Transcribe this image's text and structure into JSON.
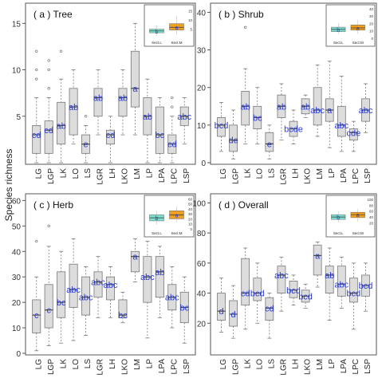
{
  "ylabel": "Species richness",
  "chart_data": [
    {
      "type": "box",
      "panel_label": "( a ) Tree",
      "categories": [
        "LG",
        "LGP",
        "LK",
        "LO",
        "LS",
        "LGR",
        "LH",
        "LKO",
        "LM",
        "LP",
        "LPA",
        "LPC",
        "LSP"
      ],
      "ylim": [
        0,
        17
      ],
      "yticks": [
        5,
        10,
        15
      ],
      "boxes": [
        {
          "min": 0,
          "q1": 1,
          "median": 3,
          "q3": 4,
          "max": 7,
          "outliers": [
            9,
            10,
            12
          ],
          "letter": "cd"
        },
        {
          "min": 0,
          "q1": 1,
          "median": 3.5,
          "q3": 4.5,
          "max": 7,
          "outliers": [
            8,
            10,
            11
          ],
          "letter": "cd"
        },
        {
          "min": 0,
          "q1": 2,
          "median": 4,
          "q3": 6.5,
          "max": 9,
          "outliers": [
            12
          ],
          "letter": "ab"
        },
        {
          "min": 2,
          "q1": 3,
          "median": 6,
          "q3": 8,
          "max": 10,
          "outliers": [],
          "letter": "ab"
        },
        {
          "min": 0,
          "q1": 1,
          "median": 2,
          "q3": 3,
          "max": 4,
          "outliers": [
            5
          ],
          "letter": "e"
        },
        {
          "min": 3,
          "q1": 5,
          "median": 7,
          "q3": 8,
          "max": 10,
          "outliers": [],
          "letter": "ab"
        },
        {
          "min": 0,
          "q1": 2,
          "median": 3,
          "q3": 3.5,
          "max": 5,
          "outliers": [],
          "letter": "cd"
        },
        {
          "min": 3,
          "q1": 5,
          "median": 7,
          "q3": 8,
          "max": 10,
          "outliers": [],
          "letter": "ab"
        },
        {
          "min": 3,
          "q1": 6,
          "median": 8,
          "q3": 12,
          "max": 15,
          "outliers": [],
          "letter": "a"
        },
        {
          "min": 0,
          "q1": 3,
          "median": 5,
          "q3": 7,
          "max": 9,
          "outliers": [],
          "letter": "ab"
        },
        {
          "min": 0,
          "q1": 1,
          "median": 3,
          "q3": 6,
          "max": 7,
          "outliers": [],
          "letter": "bc"
        },
        {
          "min": 0,
          "q1": 1,
          "median": 2,
          "q3": 3,
          "max": 5,
          "outliers": [
            6,
            7
          ],
          "letter": "cd"
        },
        {
          "min": 2,
          "q1": 4,
          "median": 5,
          "q3": 6,
          "max": 7,
          "outliers": [],
          "letter": "abc"
        }
      ],
      "inset": {
        "categories": [
          "Sect.L",
          "Sect.M"
        ],
        "yticks": [
          5,
          10,
          15
        ],
        "ylim": [
          0,
          17
        ],
        "boxes": [
          {
            "min": 1,
            "q1": 3,
            "median": 4,
            "q3": 5,
            "max": 7,
            "letter": "b",
            "color": "#7ee0cc"
          },
          {
            "min": 2,
            "q1": 4.5,
            "median": 6,
            "q3": 8,
            "max": 12,
            "letter": "a",
            "color": "#f0a020"
          }
        ]
      }
    },
    {
      "type": "box",
      "panel_label": "( b ) Shrub",
      "categories": [
        "LG",
        "LGP",
        "LK",
        "LO",
        "LS",
        "LGR",
        "LH",
        "LKO",
        "LM",
        "LP",
        "LPA",
        "LPC",
        "LSP"
      ],
      "ylim": [
        0,
        42
      ],
      "yticks": [
        0,
        10,
        20,
        30,
        40
      ],
      "boxes": [
        {
          "min": 3,
          "q1": 7,
          "median": 10,
          "q3": 12,
          "max": 16,
          "outliers": [],
          "letter": "bcd"
        },
        {
          "min": 1,
          "q1": 3,
          "median": 6,
          "q3": 10,
          "max": 14,
          "outliers": [],
          "letter": "de"
        },
        {
          "min": 5,
          "q1": 10,
          "median": 15,
          "q3": 19,
          "max": 25,
          "outliers": [
            36
          ],
          "letter": "ab"
        },
        {
          "min": 5,
          "q1": 9,
          "median": 12,
          "q3": 15,
          "max": 20,
          "outliers": [],
          "letter": "bc"
        },
        {
          "min": 1,
          "q1": 3,
          "median": 5,
          "q3": 8,
          "max": 10,
          "outliers": [],
          "letter": "e"
        },
        {
          "min": 6,
          "q1": 12,
          "median": 15,
          "q3": 18,
          "max": 21,
          "outliers": [],
          "letter": "ab"
        },
        {
          "min": 5,
          "q1": 7,
          "median": 9,
          "q3": 11,
          "max": 14,
          "outliers": [],
          "letter": "bcde"
        },
        {
          "min": 12,
          "q1": 13,
          "median": 15,
          "q3": 17,
          "max": 18,
          "outliers": [],
          "letter": "ab"
        },
        {
          "min": 7,
          "q1": 10,
          "median": 14,
          "q3": 20,
          "max": 26,
          "outliers": [],
          "letter": "abc"
        },
        {
          "min": 4,
          "q1": 11,
          "median": 14,
          "q3": 17,
          "max": 27,
          "outliers": [],
          "letter": "a"
        },
        {
          "min": 3,
          "q1": 7,
          "median": 10,
          "q3": 15,
          "max": 23,
          "outliers": [],
          "letter": "abc"
        },
        {
          "min": 3,
          "q1": 6,
          "median": 8,
          "q3": 9,
          "max": 11,
          "outliers": [],
          "letter": "cde"
        },
        {
          "min": 8,
          "q1": 11,
          "median": 14,
          "q3": 17,
          "max": 21,
          "outliers": [],
          "letter": "abc"
        }
      ],
      "inset": {
        "categories": [
          "Sect.L",
          "Sect.M"
        ],
        "yticks": [
          0,
          10,
          20,
          30,
          40
        ],
        "ylim": [
          0,
          42
        ],
        "boxes": [
          {
            "min": 5,
            "q1": 9,
            "median": 12,
            "q3": 15,
            "max": 20,
            "letter": "b",
            "color": "#7ee0cc"
          },
          {
            "min": 6,
            "q1": 11,
            "median": 14,
            "q3": 18,
            "max": 24,
            "letter": "a",
            "color": "#f0a020"
          }
        ]
      }
    },
    {
      "type": "box",
      "panel_label": "( c ) Herb",
      "categories": [
        "LG",
        "LGP",
        "LK",
        "LO",
        "LS",
        "LGR",
        "LH",
        "LKO",
        "LM",
        "LP",
        "LPA",
        "LPC",
        "LSP"
      ],
      "ylim": [
        0,
        62
      ],
      "yticks": [
        0,
        10,
        20,
        30,
        40,
        50,
        60
      ],
      "boxes": [
        {
          "min": 1,
          "q1": 8,
          "median": 15,
          "q3": 21,
          "max": 30,
          "outliers": [
            44
          ],
          "letter": "c"
        },
        {
          "min": 3,
          "q1": 10,
          "median": 17,
          "q3": 27,
          "max": 42,
          "outliers": [
            50
          ],
          "letter": "c"
        },
        {
          "min": 4,
          "q1": 14,
          "median": 20,
          "q3": 32,
          "max": 40,
          "outliers": [],
          "letter": "bc"
        },
        {
          "min": 5,
          "q1": 18,
          "median": 25,
          "q3": 35,
          "max": 45,
          "outliers": [],
          "letter": "abc"
        },
        {
          "min": 7,
          "q1": 15,
          "median": 22,
          "q3": 30,
          "max": 34,
          "outliers": [],
          "letter": "abc"
        },
        {
          "min": 14,
          "q1": 22,
          "median": 28,
          "q3": 32,
          "max": 38,
          "outliers": [],
          "letter": "abc"
        },
        {
          "min": 14,
          "q1": 21,
          "median": 27,
          "q3": 30,
          "max": 34,
          "outliers": [],
          "letter": "abc"
        },
        {
          "min": 12,
          "q1": 14,
          "median": 15,
          "q3": 21,
          "max": 24,
          "outliers": [],
          "letter": "bc"
        },
        {
          "min": 28,
          "q1": 32,
          "median": 38,
          "q3": 40,
          "max": 45,
          "outliers": [],
          "letter": "a"
        },
        {
          "min": 6,
          "q1": 20,
          "median": 30,
          "q3": 38,
          "max": 44,
          "outliers": [],
          "letter": "abc"
        },
        {
          "min": 14,
          "q1": 22,
          "median": 32,
          "q3": 38,
          "max": 42,
          "outliers": [],
          "letter": "ab"
        },
        {
          "min": 10,
          "q1": 17,
          "median": 22,
          "q3": 27,
          "max": 34,
          "outliers": [],
          "letter": "abc"
        },
        {
          "min": 4,
          "q1": 12,
          "median": 18,
          "q3": 24,
          "max": 30,
          "outliers": [],
          "letter": "bc"
        }
      ],
      "inset": {
        "categories": [
          "Sect.L",
          "Sect.M"
        ],
        "yticks": [
          0,
          10,
          20,
          30,
          40,
          50,
          60
        ],
        "ylim": [
          0,
          62
        ],
        "boxes": [
          {
            "min": 8,
            "q1": 16,
            "median": 22,
            "q3": 28,
            "max": 36,
            "letter": "b",
            "color": "#7ee0cc"
          },
          {
            "min": 12,
            "q1": 20,
            "median": 28,
            "q3": 36,
            "max": 44,
            "letter": "a",
            "color": "#f0a020"
          }
        ]
      }
    },
    {
      "type": "box",
      "panel_label": "( d ) Overall",
      "categories": [
        "LG",
        "LGP",
        "LK",
        "LO",
        "LS",
        "LGR",
        "LH",
        "LKO",
        "LM",
        "LP",
        "LPA",
        "LPC",
        "LSP"
      ],
      "ylim": [
        0,
        105
      ],
      "yticks": [
        20,
        40,
        60,
        80,
        100
      ],
      "boxes": [
        {
          "min": 14,
          "q1": 22,
          "median": 28,
          "q3": 40,
          "max": 50,
          "outliers": [],
          "letter": "d"
        },
        {
          "min": 10,
          "q1": 18,
          "median": 26,
          "q3": 35,
          "max": 45,
          "outliers": [],
          "letter": "d"
        },
        {
          "min": 16,
          "q1": 32,
          "median": 40,
          "q3": 63,
          "max": 70,
          "outliers": [],
          "letter": "cd"
        },
        {
          "min": 20,
          "q1": 35,
          "median": 40,
          "q3": 50,
          "max": 60,
          "outliers": [],
          "letter": "bcd"
        },
        {
          "min": 10,
          "q1": 22,
          "median": 30,
          "q3": 37,
          "max": 40,
          "outliers": [],
          "letter": "cd"
        },
        {
          "min": 28,
          "q1": 40,
          "median": 52,
          "q3": 58,
          "max": 64,
          "outliers": [],
          "letter": "abc"
        },
        {
          "min": 32,
          "q1": 37,
          "median": 42,
          "q3": 48,
          "max": 52,
          "outliers": [],
          "letter": "bcd"
        },
        {
          "min": 30,
          "q1": 34,
          "median": 38,
          "q3": 42,
          "max": 46,
          "outliers": [],
          "letter": "bcd"
        },
        {
          "min": 44,
          "q1": 52,
          "median": 65,
          "q3": 72,
          "max": 74,
          "outliers": [],
          "letter": "a"
        },
        {
          "min": 22,
          "q1": 40,
          "median": 52,
          "q3": 58,
          "max": 70,
          "outliers": [],
          "letter": "ab"
        },
        {
          "min": 30,
          "q1": 38,
          "median": 46,
          "q3": 58,
          "max": 64,
          "outliers": [],
          "letter": "abc"
        },
        {
          "min": 16,
          "q1": 34,
          "median": 40,
          "q3": 50,
          "max": 60,
          "outliers": [],
          "letter": "bcd"
        },
        {
          "min": 28,
          "q1": 38,
          "median": 45,
          "q3": 52,
          "max": 60,
          "outliers": [],
          "letter": "bcd"
        }
      ],
      "inset": {
        "categories": [
          "Sect.L",
          "Sect.M"
        ],
        "yticks": [
          20,
          40,
          60,
          80,
          100
        ],
        "ylim": [
          0,
          105
        ],
        "boxes": [
          {
            "min": 22,
            "q1": 32,
            "median": 40,
            "q3": 48,
            "max": 58,
            "letter": "b",
            "color": "#7ee0cc"
          },
          {
            "min": 26,
            "q1": 38,
            "median": 48,
            "q3": 56,
            "max": 66,
            "letter": "a",
            "color": "#f0a020"
          }
        ]
      }
    }
  ]
}
